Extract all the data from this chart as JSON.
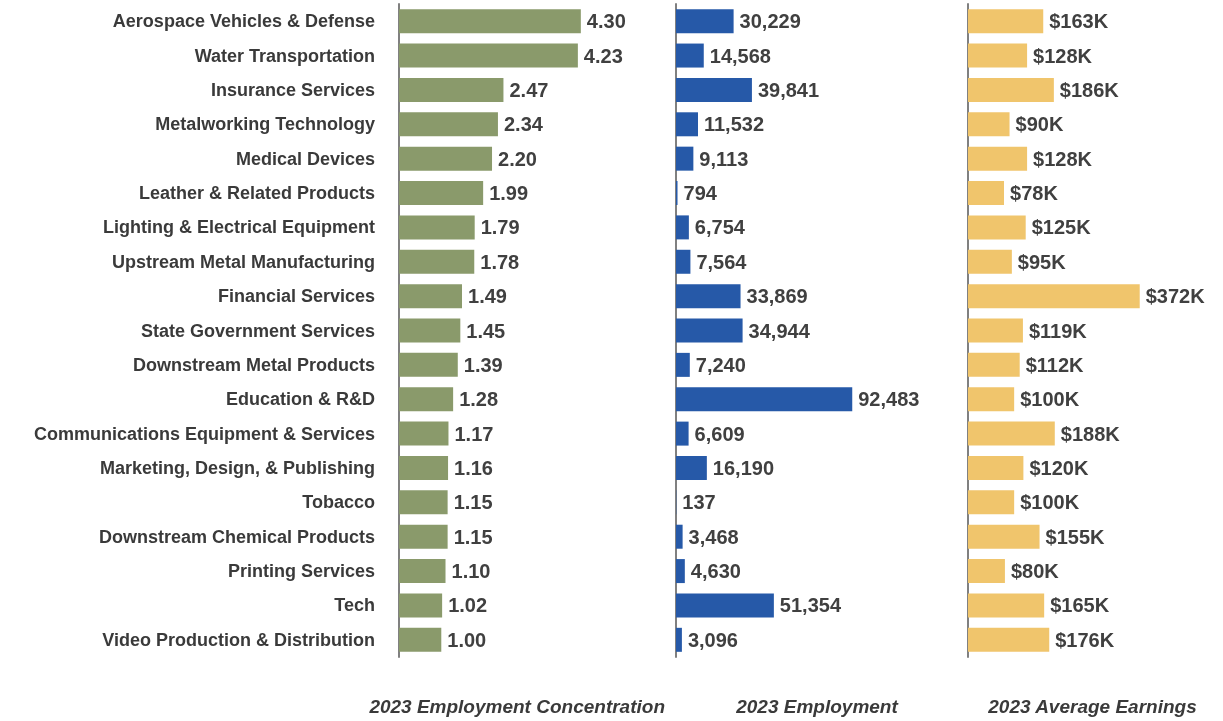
{
  "chart_data": [
    {
      "type": "bar",
      "orientation": "horizontal",
      "xlabel": "2023 Employment Concentration",
      "tick_labels": "y",
      "grid": false,
      "color": "#8a9a6b",
      "categories": [
        "Aerospace Vehicles & Defense",
        "Water Transportation",
        "Insurance Services",
        "Metalworking Technology",
        "Medical Devices",
        "Leather & Related Products",
        "Lighting & Electrical Equipment",
        "Upstream Metal Manufacturing",
        "Financial Services",
        "State Government Services",
        "Downstream Metal Products",
        "Education & R&D",
        "Communications Equipment & Services",
        "Marketing, Design, & Publishing",
        "Tobacco",
        "Downstream Chemical Products",
        "Printing Services",
        "Tech",
        "Video Production & Distribution"
      ],
      "values": [
        4.3,
        4.23,
        2.47,
        2.34,
        2.2,
        1.99,
        1.79,
        1.78,
        1.49,
        1.45,
        1.39,
        1.28,
        1.17,
        1.16,
        1.15,
        1.15,
        1.1,
        1.02,
        1.0
      ],
      "value_labels": [
        "4.30",
        "4.23",
        "2.47",
        "2.34",
        "2.20",
        "1.99",
        "1.79",
        "1.78",
        "1.49",
        "1.45",
        "1.39",
        "1.28",
        "1.17",
        "1.16",
        "1.15",
        "1.15",
        "1.10",
        "1.02",
        "1.00"
      ]
    },
    {
      "type": "bar",
      "orientation": "horizontal",
      "xlabel": "2023 Employment",
      "tick_labels": false,
      "grid": false,
      "color": "#2659a8",
      "categories": [
        null,
        null,
        null,
        null,
        null,
        null,
        null,
        null,
        null,
        null,
        null,
        null,
        null,
        null,
        null,
        null,
        null,
        null,
        null
      ],
      "values": [
        30229,
        14568,
        39841,
        11532,
        9113,
        794,
        6754,
        7564,
        33869,
        34944,
        7240,
        92483,
        6609,
        16190,
        137,
        3468,
        4630,
        51354,
        3096
      ],
      "value_labels": [
        "30,229",
        "14,568",
        "39,841",
        "11,532",
        "9,113",
        "794",
        "6,754",
        "7,564",
        "33,869",
        "34,944",
        "7,240",
        "92,483",
        "6,609",
        "16,190",
        "137",
        "3,468",
        "4,630",
        "51,354",
        "3,096"
      ]
    },
    {
      "type": "bar",
      "orientation": "horizontal",
      "xlabel": "2023 Average Earnings",
      "tick_labels": false,
      "grid": false,
      "color": "#f0c56c",
      "categories": [
        null,
        null,
        null,
        null,
        null,
        null,
        null,
        null,
        null,
        null,
        null,
        null,
        null,
        null,
        null,
        null,
        null,
        null,
        null
      ],
      "values": [
        163,
        128,
        186,
        90,
        128,
        78,
        125,
        95,
        372,
        119,
        112,
        100,
        188,
        120,
        100,
        155,
        80,
        165,
        176
      ],
      "value_labels": [
        "$163K",
        "$128K",
        "$186K",
        "$90K",
        "$128K",
        "$78K",
        "$125K",
        "$95K",
        "$372K",
        "$119K",
        "$112K",
        "$100K",
        "$188K",
        "$120K",
        "$100K",
        "$155K",
        "$80K",
        "$165K",
        "$176K"
      ]
    }
  ]
}
